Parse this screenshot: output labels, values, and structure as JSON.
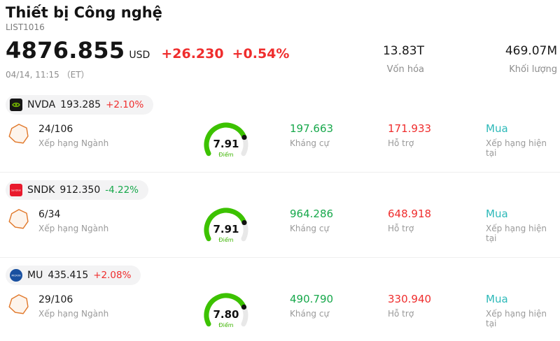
{
  "header": {
    "title": "Thiết bị Công nghệ",
    "list_id": "LIST1016",
    "price": "4876.855",
    "currency": "USD",
    "change": "+26.230",
    "change_pct": "+0.54%",
    "datetime": "04/14, 11:15 （ET）",
    "market_cap": {
      "value": "13.83T",
      "label": "Vốn hóa"
    },
    "volume": {
      "value": "469.07M",
      "label": "Khối lượng"
    }
  },
  "labels": {
    "rank": "Xếp hạng Ngành",
    "resistance": "Kháng cự",
    "support": "Hỗ trợ",
    "current_rating": "Xếp hạng hiện tại",
    "score_unit": "Điểm"
  },
  "colors": {
    "up_red": "#ef2d2d",
    "down_green": "#17a84b",
    "rating_teal": "#2cb9b9",
    "gauge_green": "#3cc200",
    "nvidia_green": "#76b900",
    "sandisk_red": "#e8192c",
    "micron_blue": "#1950a0"
  },
  "stocks": [
    {
      "ticker": "NVDA",
      "price": "193.285",
      "change_pct": "+2.10%",
      "direction": "up",
      "rank": "24/106",
      "score": "7.91",
      "score_value": 7.91,
      "resistance": "197.663",
      "support": "171.933",
      "rating": "Mua"
    },
    {
      "ticker": "SNDK",
      "price": "912.350",
      "change_pct": "-4.22%",
      "direction": "down",
      "rank": "6/34",
      "score": "7.91",
      "score_value": 7.91,
      "resistance": "964.286",
      "support": "648.918",
      "rating": "Mua"
    },
    {
      "ticker": "MU",
      "price": "435.415",
      "change_pct": "+2.08%",
      "direction": "up",
      "rank": "29/106",
      "score": "7.80",
      "score_value": 7.8,
      "resistance": "490.790",
      "support": "330.940",
      "rating": "Mua"
    }
  ]
}
